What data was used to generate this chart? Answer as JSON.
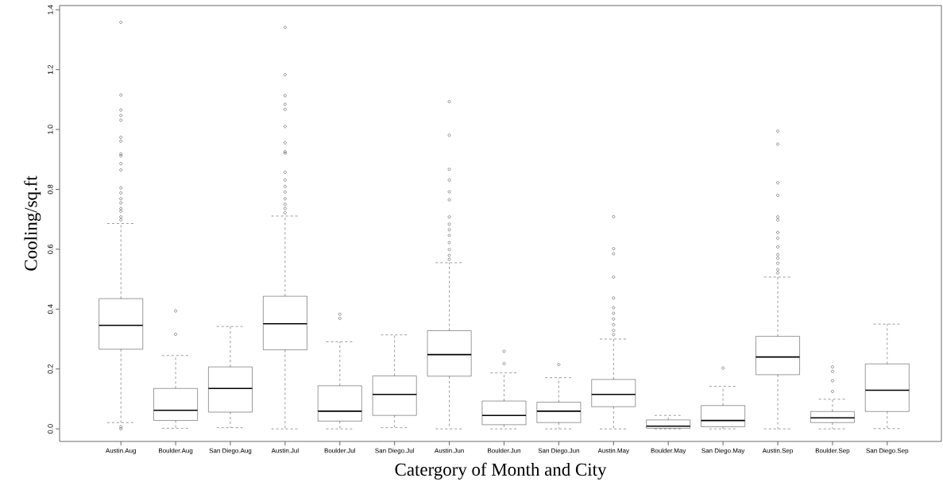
{
  "chart_data": {
    "type": "box",
    "xlabel": "Catergory of Month and City",
    "ylabel": "Cooling/sq.ft",
    "categories": [
      "Austin.Aug",
      "Boulder.Aug",
      "San Diego.Aug",
      "Austin.Jul",
      "Boulder.Jul",
      "San Diego.Jul",
      "Austin.Jun",
      "Boulder.Jun",
      "San Diego.Jun",
      "Austin.May",
      "Boulder.May",
      "San Diego.May",
      "Austin.Sep",
      "Boulder.Sep",
      "San Diego.Sep"
    ],
    "ylim": [
      -0.042,
      1.414
    ],
    "yticks": [
      {
        "value": 0,
        "label": "0.0"
      },
      0.2,
      0.4,
      0.6,
      0.8,
      {
        "value": 1,
        "label": "1.0"
      },
      1.2,
      1.4
    ],
    "boxes": [
      {
        "low": 0.021,
        "q1": 0.266,
        "median": 0.346,
        "q3": 0.435,
        "high": 0.686,
        "outliers": [
          1.358,
          1.115,
          1.065,
          1.047,
          1.031,
          0.974,
          0.961,
          0.918,
          0.912,
          0.886,
          0.865,
          0.805,
          0.788,
          0.769,
          0.755,
          0.736,
          0.727,
          0.708,
          0.698,
          0.007,
          0
        ]
      },
      {
        "low": 0.002,
        "q1": 0.028,
        "median": 0.062,
        "q3": 0.135,
        "high": 0.245,
        "outliers": [
          0.394,
          0.316
        ]
      },
      {
        "low": 0.004,
        "q1": 0.056,
        "median": 0.135,
        "q3": 0.207,
        "high": 0.342
      },
      {
        "low": 0,
        "q1": 0.264,
        "median": 0.351,
        "q3": 0.443,
        "high": 0.711,
        "outliers": [
          1.341,
          1.183,
          1.113,
          1.084,
          1.067,
          1.01,
          0.956,
          0.926,
          0.921,
          0.857,
          0.831,
          0.81,
          0.791,
          0.769,
          0.75,
          0.736,
          0.722
        ]
      },
      {
        "low": 0,
        "q1": 0.026,
        "median": 0.059,
        "q3": 0.144,
        "high": 0.291,
        "outliers": [
          0.383,
          0.369
        ]
      },
      {
        "low": 0.004,
        "q1": 0.045,
        "median": 0.115,
        "q3": 0.177,
        "high": 0.314
      },
      {
        "low": 0,
        "q1": 0.176,
        "median": 0.248,
        "q3": 0.328,
        "high": 0.555,
        "outliers": [
          1.093,
          0.981,
          0.867,
          0.831,
          0.792,
          0.765,
          0.708,
          0.684,
          0.665,
          0.646,
          0.622,
          0.599,
          0.58,
          0.566
        ]
      },
      {
        "low": 0,
        "q1": 0.014,
        "median": 0.045,
        "q3": 0.093,
        "high": 0.187,
        "outliers": [
          0.259,
          0.218
        ]
      },
      {
        "low": 0,
        "q1": 0.021,
        "median": 0.059,
        "q3": 0.089,
        "high": 0.171,
        "outliers": [
          0.215
        ]
      },
      {
        "low": 0,
        "q1": 0.074,
        "median": 0.115,
        "q3": 0.165,
        "high": 0.3,
        "outliers": [
          0.709,
          0.602,
          0.585,
          0.507,
          0.437,
          0.405,
          0.386,
          0.367,
          0.348,
          0.329,
          0.315
        ]
      },
      {
        "low": 0,
        "q1": 0.002,
        "median": 0.009,
        "q3": 0.03,
        "high": 0.045
      },
      {
        "low": 0,
        "q1": 0.007,
        "median": 0.028,
        "q3": 0.078,
        "high": 0.142,
        "outliers": [
          0.203
        ]
      },
      {
        "low": 0,
        "q1": 0.181,
        "median": 0.24,
        "q3": 0.309,
        "high": 0.507,
        "outliers": [
          0.994,
          0.951,
          0.822,
          0.78,
          0.708,
          0.698,
          0.656,
          0.637,
          0.608,
          0.582,
          0.57,
          0.553,
          0.532,
          0.521
        ]
      },
      {
        "low": 0,
        "q1": 0.021,
        "median": 0.037,
        "q3": 0.058,
        "high": 0.099,
        "outliers": [
          0.207,
          0.192,
          0.161,
          0.125
        ]
      },
      {
        "low": 0.001,
        "q1": 0.058,
        "median": 0.129,
        "q3": 0.217,
        "high": 0.35
      }
    ]
  }
}
